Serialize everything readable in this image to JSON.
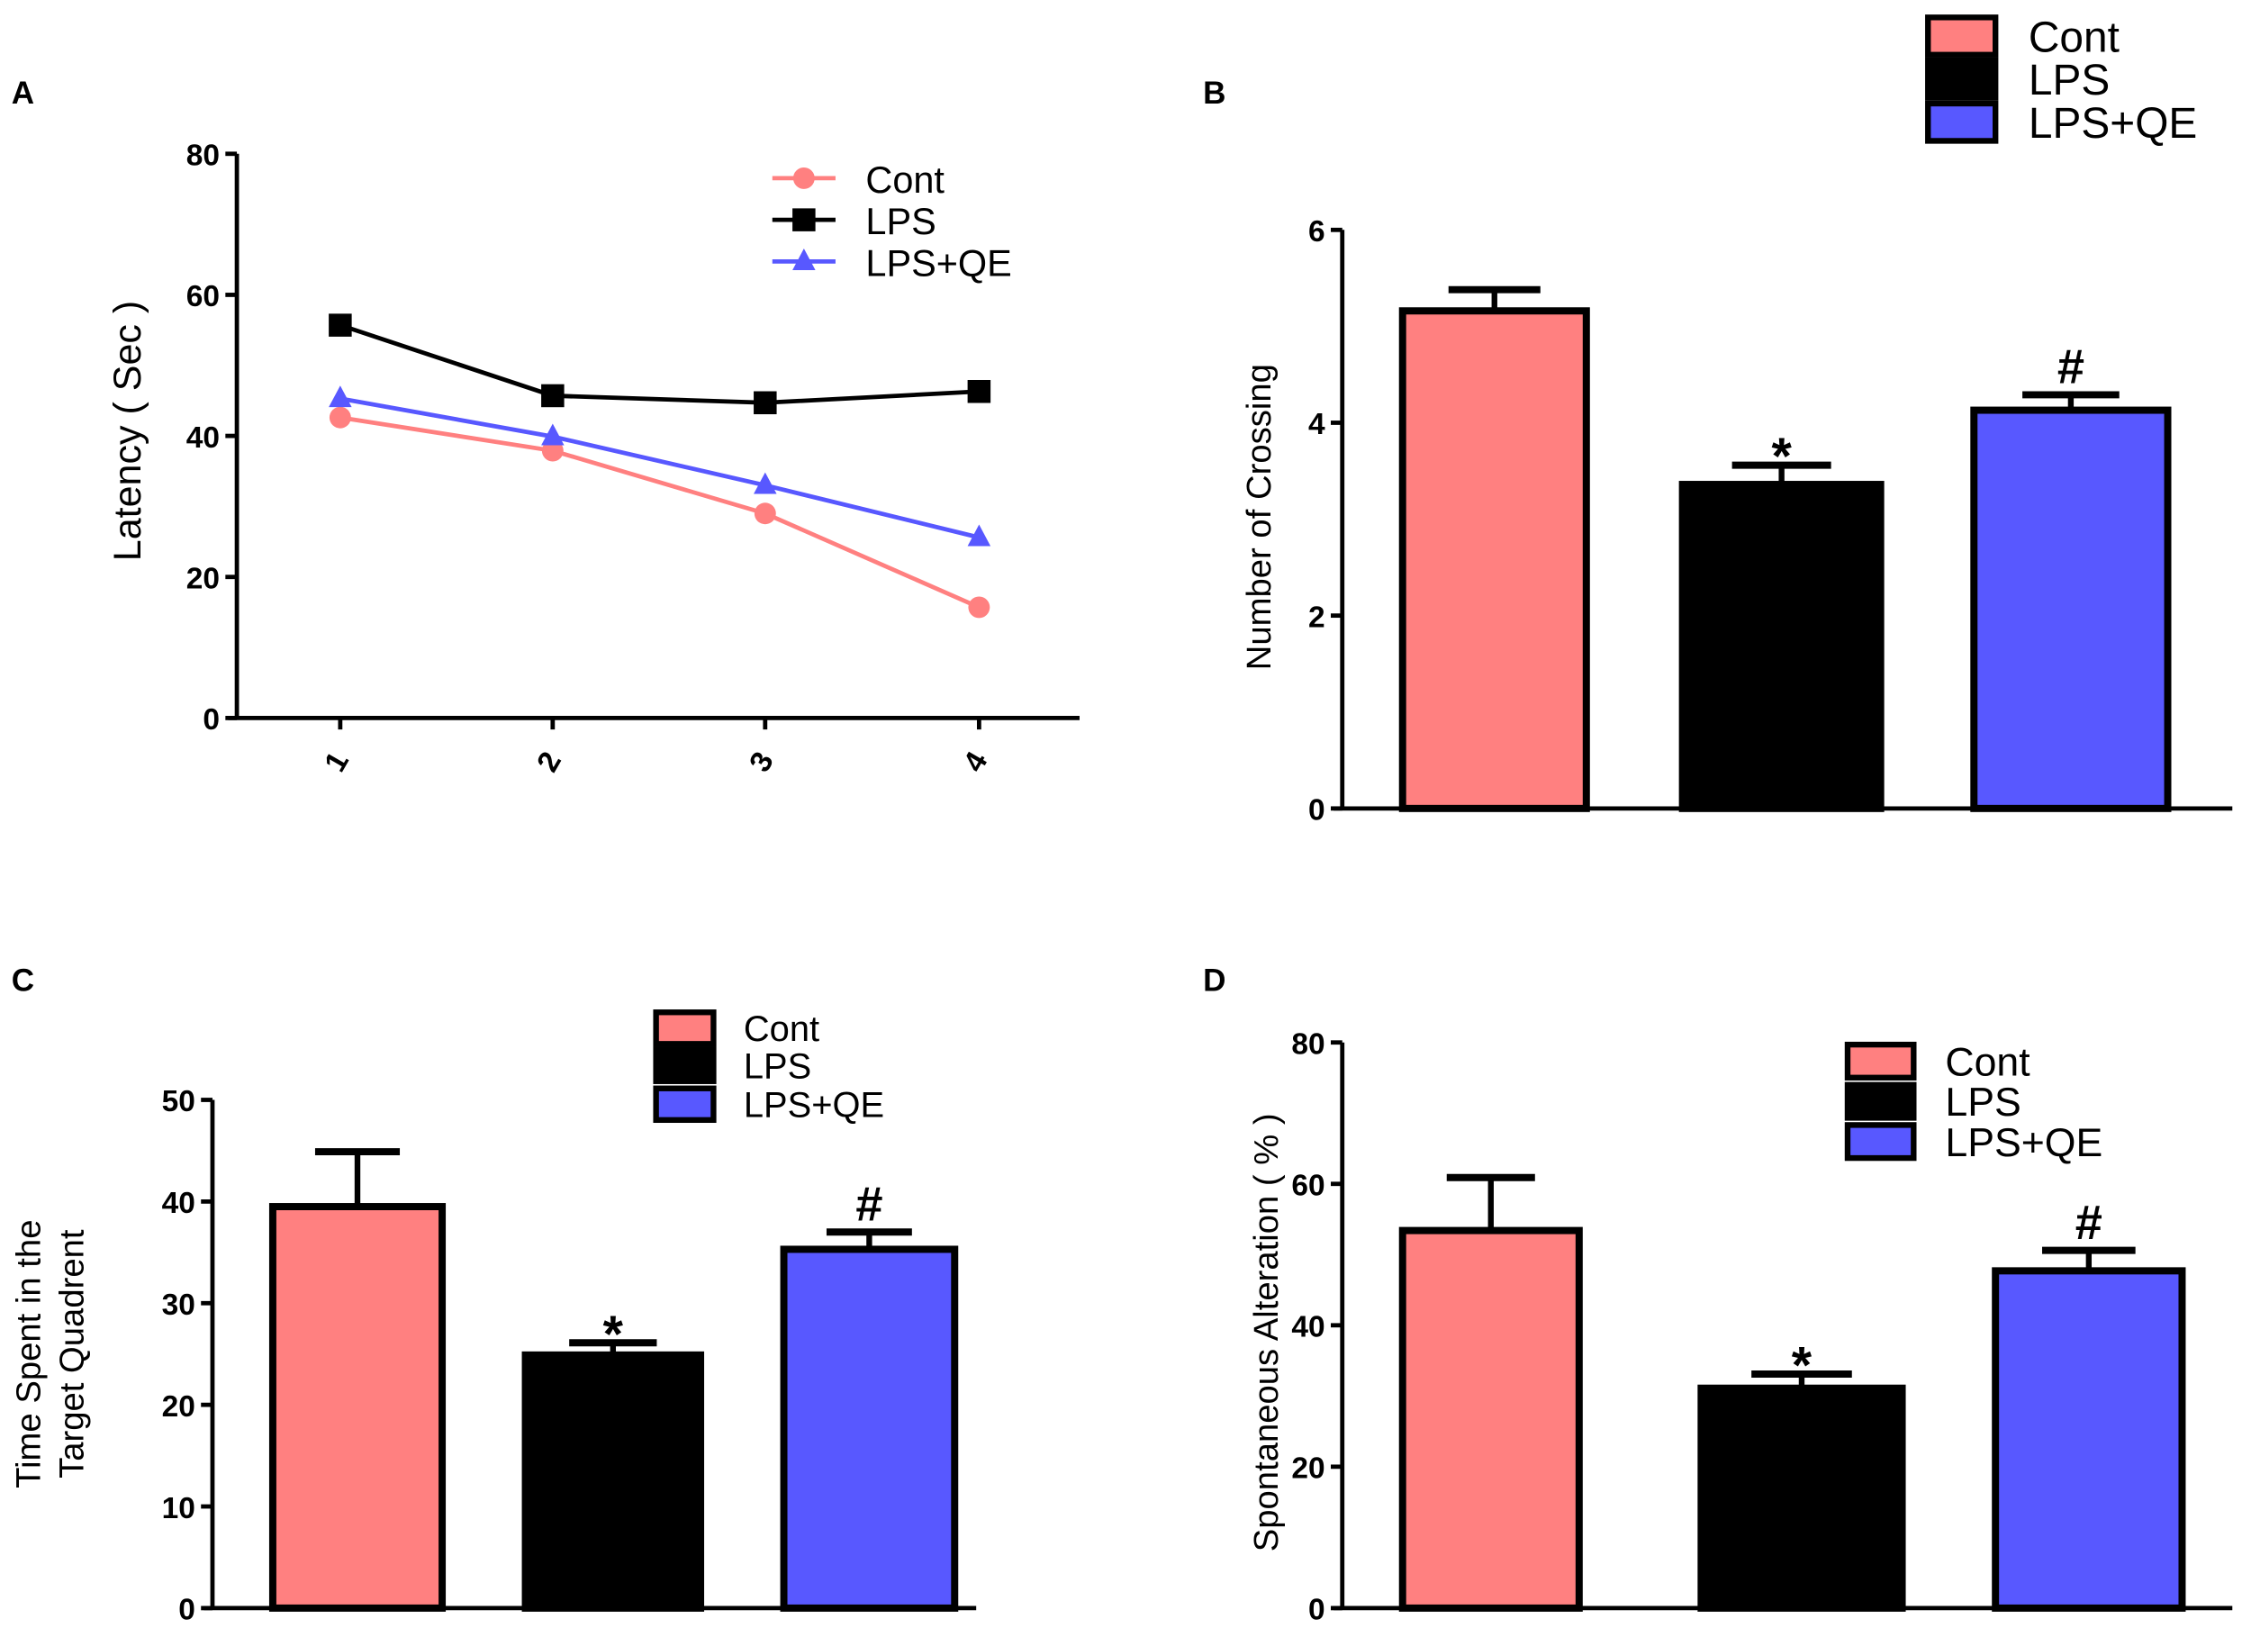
{
  "colors": {
    "Cont": "#ff8080",
    "LPS": "#000000",
    "LPS+QE": "#5858ff"
  },
  "chart_data": [
    {
      "panel": "A",
      "type": "line",
      "xlabel": "",
      "ylabel": "Latency ( Sec )",
      "x": [
        "1",
        "2",
        "3",
        "4"
      ],
      "ylim": [
        0,
        80
      ],
      "yticks": [
        "0",
        "20",
        "40",
        "60",
        "80"
      ],
      "legend": "top-right",
      "series": [
        {
          "name": "Cont",
          "marker": "circle",
          "values": [
            42.6,
            37.9,
            29.0,
            15.7
          ]
        },
        {
          "name": "LPS",
          "marker": "square",
          "values": [
            55.7,
            45.7,
            44.7,
            46.3
          ]
        },
        {
          "name": "LPS+QE",
          "marker": "triangle",
          "values": [
            45.3,
            39.9,
            33.0,
            25.6
          ]
        }
      ]
    },
    {
      "panel": "B",
      "type": "bar",
      "ylabel": "Number of Crossing",
      "categories": [
        "Cont",
        "LPS",
        "LPS+QE"
      ],
      "values": [
        5.16,
        3.36,
        4.13
      ],
      "errors": [
        0.22,
        0.2,
        0.16
      ],
      "annotations": [
        "",
        "*",
        "#"
      ],
      "ylim": [
        0,
        6
      ],
      "yticks": [
        "0",
        "2",
        "4",
        "6"
      ],
      "legend": "top-right"
    },
    {
      "panel": "C",
      "type": "bar",
      "ylabel_lines": [
        "Time Spent in the",
        "Target Quadrent"
      ],
      "categories": [
        "Cont",
        "LPS",
        "LPS+QE"
      ],
      "values": [
        39.5,
        24.9,
        35.3
      ],
      "errors": [
        5.4,
        1.2,
        1.7
      ],
      "annotations": [
        "",
        "*",
        "#"
      ],
      "ylim": [
        0,
        50
      ],
      "yticks": [
        "0",
        "10",
        "20",
        "30",
        "40",
        "50"
      ],
      "legend": "top-right"
    },
    {
      "panel": "D",
      "type": "bar",
      "ylabel": "Spontaneous Alteration ( % )",
      "categories": [
        "Cont",
        "LPS",
        "LPS+QE"
      ],
      "values": [
        53.4,
        31.1,
        47.7
      ],
      "errors": [
        7.5,
        2.0,
        2.9
      ],
      "annotations": [
        "",
        "*",
        "#"
      ],
      "ylim": [
        0,
        80
      ],
      "yticks": [
        "0",
        "20",
        "40",
        "60",
        "80"
      ],
      "legend": "top-right"
    }
  ]
}
